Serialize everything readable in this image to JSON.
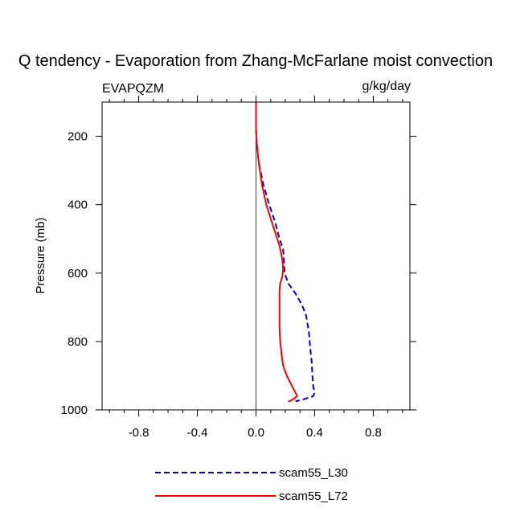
{
  "chart_data": {
    "type": "line",
    "title": "Q tendency - Evaporation from Zhang-McFarlane moist convection",
    "left_label": "EVAPQZM",
    "right_label": "g/kg/day",
    "xlabel": "",
    "ylabel": "Pressure (mb)",
    "xlim": [
      -1.05,
      1.05
    ],
    "ylim": [
      100,
      1000
    ],
    "y_inverted": true,
    "x_ticks": [
      -0.8,
      -0.4,
      0.0,
      0.4,
      0.8
    ],
    "x_tick_labels": [
      "-0.8",
      "-0.4",
      "0.0",
      "0.4",
      "0.8"
    ],
    "y_ticks": [
      200,
      400,
      600,
      800,
      1000
    ],
    "y_tick_labels": [
      "200",
      "400",
      "600",
      "800",
      "1000"
    ],
    "zero_line": true,
    "legend_position": "bottom-center",
    "series": [
      {
        "name": "scam55_L30",
        "color": "#0000cc",
        "dash": "dashed",
        "x": [
          0.0,
          0.0,
          0.0,
          0.005,
          0.02,
          0.05,
          0.09,
          0.13,
          0.16,
          0.185,
          0.19,
          0.195,
          0.22,
          0.27,
          0.31,
          0.34,
          0.36,
          0.37,
          0.38,
          0.385,
          0.39,
          0.4,
          0.39,
          0.33,
          0.27
        ],
        "y": [
          100,
          150,
          180,
          220,
          280,
          340,
          400,
          450,
          500,
          530,
          560,
          600,
          630,
          660,
          690,
          720,
          770,
          820,
          860,
          900,
          930,
          950,
          960,
          968,
          975
        ]
      },
      {
        "name": "scam55_L72",
        "color": "#ff0000",
        "dash": "solid",
        "x": [
          0.0,
          0.0,
          0.0,
          0.005,
          0.02,
          0.04,
          0.07,
          0.1,
          0.13,
          0.16,
          0.18,
          0.185,
          0.18,
          0.165,
          0.16,
          0.16,
          0.16,
          0.165,
          0.175,
          0.185,
          0.21,
          0.245,
          0.27,
          0.28,
          0.25,
          0.22
        ],
        "y": [
          100,
          150,
          180,
          220,
          280,
          340,
          400,
          440,
          480,
          520,
          560,
          590,
          610,
          630,
          650,
          700,
          760,
          800,
          840,
          870,
          900,
          930,
          950,
          960,
          970,
          976
        ]
      }
    ]
  }
}
